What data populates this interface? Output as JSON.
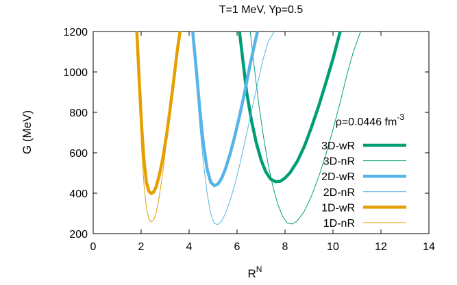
{
  "chart_data": {
    "type": "line",
    "title": "T=1 MeV, Yp=0.5",
    "xlabel": "R",
    "xlabel_superscript": "N",
    "ylabel": "G (MeV)",
    "xlim": [
      0,
      14
    ],
    "ylim": [
      200,
      1200
    ],
    "x_ticks": [
      0,
      2,
      4,
      6,
      8,
      10,
      12,
      14
    ],
    "y_ticks": [
      200,
      400,
      600,
      800,
      1000,
      1200
    ],
    "grid": false,
    "legend_position": "right",
    "annotation": {
      "text": "ρ=0.0446 fm",
      "superscript": "-3"
    },
    "series": [
      {
        "name": "3D-wR",
        "color": "#009e73",
        "width": "thick",
        "x": [
          6.1,
          6.25,
          6.4,
          6.6,
          6.8,
          7.0,
          7.2,
          7.4,
          7.6,
          7.8,
          8.0,
          8.2,
          8.5,
          8.8,
          9.1,
          9.4,
          9.7,
          10.0,
          10.3
        ],
        "y": [
          1200,
          1050,
          900,
          760,
          650,
          565,
          505,
          470,
          457,
          459,
          475,
          500,
          555,
          630,
          725,
          830,
          945,
          1065,
          1200
        ]
      },
      {
        "name": "3D-nR",
        "color": "#009e73",
        "width": "thin",
        "x": [
          6.55,
          6.7,
          6.9,
          7.1,
          7.3,
          7.5,
          7.7,
          7.9,
          8.1,
          8.3,
          8.5,
          8.8,
          9.1,
          9.4,
          9.7,
          10.0,
          10.3,
          10.6,
          10.85,
          11.15
        ],
        "y": [
          1200,
          1040,
          845,
          680,
          540,
          430,
          345,
          285,
          252,
          248,
          262,
          310,
          385,
          480,
          590,
          715,
          850,
          995,
          1100,
          1200
        ]
      },
      {
        "name": "2D-wR",
        "color": "#56b4e9",
        "width": "thick",
        "x": [
          4.15,
          4.3,
          4.45,
          4.6,
          4.75,
          4.9,
          5.05,
          5.2,
          5.35,
          5.5,
          5.7,
          5.9,
          6.1,
          6.3,
          6.55,
          6.85
        ],
        "y": [
          1200,
          1010,
          810,
          640,
          520,
          455,
          437,
          445,
          472,
          515,
          590,
          680,
          780,
          890,
          1040,
          1200
        ]
      },
      {
        "name": "2D-nR",
        "color": "#56b4e9",
        "width": "thin",
        "x": [
          4.15,
          4.3,
          4.45,
          4.6,
          4.75,
          4.9,
          5.05,
          5.2,
          5.35,
          5.5,
          5.7,
          5.9,
          6.1,
          6.3,
          6.5,
          6.7,
          6.9,
          7.1,
          7.3,
          7.55
        ],
        "y": [
          1200,
          960,
          730,
          545,
          400,
          300,
          250,
          245,
          262,
          295,
          360,
          440,
          535,
          640,
          750,
          860,
          965,
          1070,
          1150,
          1200
        ]
      },
      {
        "name": "1D-wR",
        "color": "#e69f00",
        "width": "thick",
        "x": [
          1.82,
          1.92,
          2.02,
          2.12,
          2.22,
          2.32,
          2.42,
          2.52,
          2.62,
          2.75,
          2.9,
          3.05,
          3.2,
          3.35,
          3.5,
          3.62
        ],
        "y": [
          1200,
          960,
          730,
          560,
          455,
          410,
          398,
          405,
          430,
          485,
          570,
          680,
          810,
          950,
          1100,
          1200
        ]
      },
      {
        "name": "1D-nR",
        "color": "#e69f00",
        "width": "thin",
        "x": [
          1.82,
          1.92,
          2.02,
          2.12,
          2.22,
          2.32,
          2.42,
          2.52,
          2.62,
          2.75,
          2.9,
          3.05,
          3.2,
          3.35,
          3.5,
          3.62
        ],
        "y": [
          1200,
          880,
          620,
          440,
          330,
          272,
          258,
          266,
          300,
          380,
          500,
          650,
          810,
          975,
          1130,
          1200
        ]
      }
    ]
  }
}
